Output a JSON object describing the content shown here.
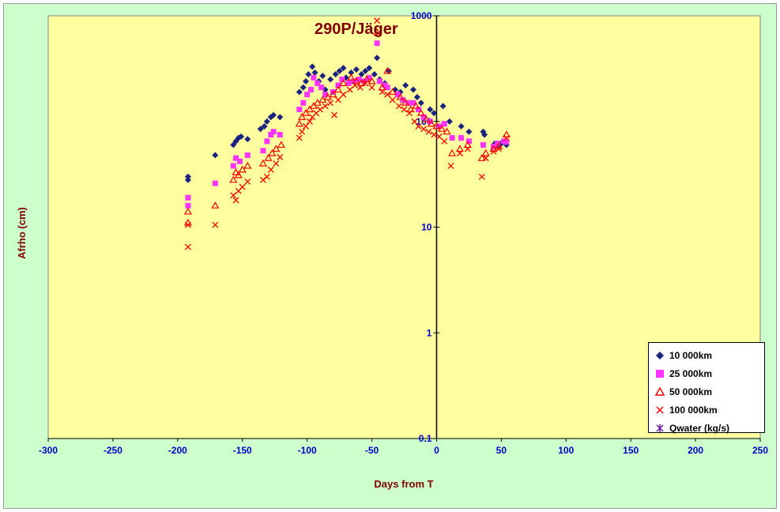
{
  "chart_data": {
    "type": "scatter",
    "title": "290P/Jäger",
    "xlabel": "Days from  T",
    "ylabel": "Afrho (cm)",
    "xlim": [
      -300,
      250
    ],
    "ylim": [
      0.1,
      1000
    ],
    "yscale": "log",
    "x_ticks": [
      "-300",
      "-250",
      "-200",
      "-150",
      "-100",
      "-50",
      "0",
      "50",
      "100",
      "150",
      "200",
      "250"
    ],
    "y_ticks": [
      "0.1",
      "1",
      "10",
      "100",
      "1000"
    ],
    "grid": false,
    "legend_position": "right-bottom",
    "colors": {
      "plot_bg": "#ffffa0",
      "chart_bg": "#ccffcc",
      "tick_text": "#0000cc",
      "title_text": "#800000"
    },
    "series": [
      {
        "name": "10 000km",
        "marker": "diamond",
        "color": "#1a237e",
        "points": [
          [
            -192,
            30
          ],
          [
            -192,
            28
          ],
          [
            -171,
            48
          ],
          [
            -157,
            60
          ],
          [
            -155,
            65
          ],
          [
            -153,
            70
          ],
          [
            -151,
            72
          ],
          [
            -146,
            68
          ],
          [
            -136,
            85
          ],
          [
            -133,
            90
          ],
          [
            -131,
            100
          ],
          [
            -128,
            110
          ],
          [
            -126,
            115
          ],
          [
            -121,
            110
          ],
          [
            -106,
            190
          ],
          [
            -103,
            210
          ],
          [
            -101,
            240
          ],
          [
            -99,
            280
          ],
          [
            -96,
            330
          ],
          [
            -94,
            290
          ],
          [
            -91,
            240
          ],
          [
            -88,
            270
          ],
          [
            -86,
            200
          ],
          [
            -82,
            250
          ],
          [
            -78,
            280
          ],
          [
            -75,
            300
          ],
          [
            -72,
            320
          ],
          [
            -70,
            260
          ],
          [
            -66,
            290
          ],
          [
            -62,
            310
          ],
          [
            -58,
            280
          ],
          [
            -55,
            300
          ],
          [
            -52,
            320
          ],
          [
            -48,
            280
          ],
          [
            -46,
            400
          ],
          [
            -44,
            250
          ],
          [
            -40,
            230
          ],
          [
            -37,
            300
          ],
          [
            -32,
            200
          ],
          [
            -28,
            190
          ],
          [
            -24,
            220
          ],
          [
            -18,
            200
          ],
          [
            -15,
            170
          ],
          [
            -12,
            150
          ],
          [
            -5,
            130
          ],
          [
            -2,
            120
          ],
          [
            5,
            140
          ],
          [
            10,
            100
          ],
          [
            19,
            90
          ],
          [
            25,
            80
          ],
          [
            36,
            80
          ],
          [
            37,
            75
          ],
          [
            45,
            62
          ],
          [
            48,
            60
          ],
          [
            50,
            62
          ],
          [
            54,
            60
          ]
        ]
      },
      {
        "name": "25 000km",
        "marker": "square",
        "color": "#ff33ff",
        "points": [
          [
            -192,
            19
          ],
          [
            -192,
            16
          ],
          [
            -171,
            26
          ],
          [
            -157,
            38
          ],
          [
            -155,
            45
          ],
          [
            -152,
            42
          ],
          [
            -146,
            48
          ],
          [
            -134,
            53
          ],
          [
            -131,
            65
          ],
          [
            -128,
            75
          ],
          [
            -126,
            80
          ],
          [
            -121,
            75
          ],
          [
            -106,
            130
          ],
          [
            -103,
            150
          ],
          [
            -100,
            180
          ],
          [
            -97,
            200
          ],
          [
            -95,
            260
          ],
          [
            -92,
            230
          ],
          [
            -89,
            210
          ],
          [
            -86,
            180
          ],
          [
            -80,
            190
          ],
          [
            -76,
            220
          ],
          [
            -73,
            250
          ],
          [
            -68,
            230
          ],
          [
            -64,
            240
          ],
          [
            -60,
            250
          ],
          [
            -56,
            240
          ],
          [
            -52,
            260
          ],
          [
            -46,
            550
          ],
          [
            -44,
            240
          ],
          [
            -40,
            220
          ],
          [
            -38,
            210
          ],
          [
            -30,
            180
          ],
          [
            -26,
            160
          ],
          [
            -22,
            150
          ],
          [
            -18,
            150
          ],
          [
            -14,
            130
          ],
          [
            -10,
            110
          ],
          [
            -5,
            100
          ],
          [
            2,
            90
          ],
          [
            6,
            95
          ],
          [
            12,
            70
          ],
          [
            19,
            70
          ],
          [
            25,
            65
          ],
          [
            36,
            60
          ],
          [
            44,
            58
          ],
          [
            47,
            62
          ],
          [
            52,
            65
          ],
          [
            54,
            64
          ]
        ]
      },
      {
        "name": "50 000km",
        "marker": "triangle",
        "color": "#ff0000",
        "points": [
          [
            -192,
            14
          ],
          [
            -192,
            11
          ],
          [
            -171,
            16
          ],
          [
            -157,
            28
          ],
          [
            -155,
            33
          ],
          [
            -153,
            31
          ],
          [
            -150,
            35
          ],
          [
            -146,
            38
          ],
          [
            -134,
            40
          ],
          [
            -130,
            45
          ],
          [
            -127,
            50
          ],
          [
            -124,
            55
          ],
          [
            -120,
            60
          ],
          [
            -106,
            95
          ],
          [
            -104,
            110
          ],
          [
            -101,
            120
          ],
          [
            -98,
            130
          ],
          [
            -95,
            140
          ],
          [
            -92,
            150
          ],
          [
            -88,
            160
          ],
          [
            -84,
            170
          ],
          [
            -80,
            180
          ],
          [
            -76,
            200
          ],
          [
            -72,
            230
          ],
          [
            -66,
            260
          ],
          [
            -62,
            240
          ],
          [
            -58,
            230
          ],
          [
            -54,
            250
          ],
          [
            -50,
            240
          ],
          [
            -46,
            700
          ],
          [
            -42,
            210
          ],
          [
            -38,
            300
          ],
          [
            -34,
            190
          ],
          [
            -28,
            170
          ],
          [
            -24,
            150
          ],
          [
            -20,
            130
          ],
          [
            -16,
            140
          ],
          [
            -12,
            120
          ],
          [
            -8,
            105
          ],
          [
            -4,
            95
          ],
          [
            0,
            90
          ],
          [
            4,
            85
          ],
          [
            8,
            80
          ],
          [
            12,
            50
          ],
          [
            18,
            55
          ],
          [
            24,
            60
          ],
          [
            35,
            45
          ],
          [
            38,
            50
          ],
          [
            44,
            55
          ],
          [
            48,
            58
          ],
          [
            54,
            75
          ]
        ]
      },
      {
        "name": "100 000km",
        "marker": "x",
        "color": "#ff0000",
        "points": [
          [
            -192,
            6.5
          ],
          [
            -192,
            10.5
          ],
          [
            -171,
            10.5
          ],
          [
            -157,
            20
          ],
          [
            -155,
            18
          ],
          [
            -153,
            22
          ],
          [
            -150,
            24
          ],
          [
            -146,
            27
          ],
          [
            -134,
            28
          ],
          [
            -131,
            30
          ],
          [
            -128,
            35
          ],
          [
            -124,
            40
          ],
          [
            -121,
            46
          ],
          [
            -106,
            70
          ],
          [
            -104,
            80
          ],
          [
            -101,
            90
          ],
          [
            -98,
            100
          ],
          [
            -96,
            110
          ],
          [
            -93,
            120
          ],
          [
            -90,
            130
          ],
          [
            -86,
            140
          ],
          [
            -82,
            150
          ],
          [
            -79,
            115
          ],
          [
            -76,
            160
          ],
          [
            -72,
            180
          ],
          [
            -67,
            200
          ],
          [
            -63,
            220
          ],
          [
            -59,
            210
          ],
          [
            -55,
            230
          ],
          [
            -50,
            210
          ],
          [
            -46,
            900
          ],
          [
            -42,
            190
          ],
          [
            -38,
            180
          ],
          [
            -34,
            160
          ],
          [
            -29,
            140
          ],
          [
            -25,
            130
          ],
          [
            -21,
            120
          ],
          [
            -17,
            100
          ],
          [
            -14,
            90
          ],
          [
            -10,
            85
          ],
          [
            -6,
            80
          ],
          [
            -2,
            75
          ],
          [
            2,
            72
          ],
          [
            6,
            65
          ],
          [
            11,
            38
          ],
          [
            18,
            50
          ],
          [
            24,
            55
          ],
          [
            35,
            30
          ],
          [
            38,
            45
          ],
          [
            44,
            52
          ],
          [
            48,
            55
          ],
          [
            54,
            70
          ]
        ]
      },
      {
        "name": "Qwater (kg/s)",
        "marker": "star",
        "color": "#6a1b9a",
        "points": []
      }
    ]
  }
}
